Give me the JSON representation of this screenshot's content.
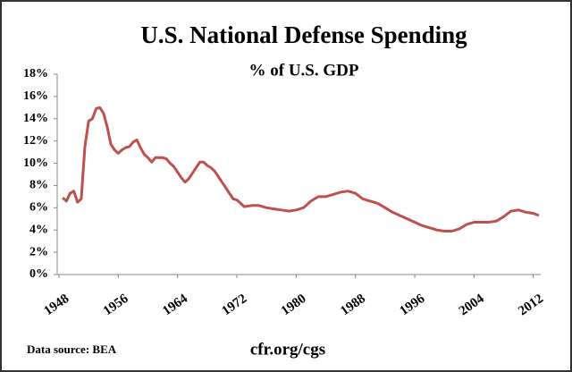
{
  "chart_data": {
    "type": "line",
    "title": "U.S. National Defense Spending",
    "subtitle": "% of U.S. GDP",
    "source": "Data source: BEA",
    "footer": "cfr.org/cgs",
    "x": [
      1948.5,
      1949,
      1949.5,
      1950,
      1950.5,
      1951,
      1951.5,
      1952,
      1952.5,
      1953,
      1953.5,
      1954,
      1954.5,
      1955,
      1955.5,
      1956,
      1956.5,
      1957,
      1957.5,
      1958,
      1958.5,
      1959,
      1959.5,
      1960,
      1960.5,
      1961,
      1961.5,
      1962,
      1962.5,
      1963,
      1963.5,
      1964,
      1964.5,
      1965,
      1965.5,
      1966,
      1966.5,
      1967,
      1967.5,
      1968,
      1968.5,
      1969,
      1969.5,
      1970,
      1970.5,
      1971,
      1971.5,
      1972,
      1972.5,
      1973,
      1974,
      1975,
      1976,
      1977,
      1978,
      1979,
      1980,
      1981,
      1982,
      1983,
      1984,
      1985,
      1986,
      1987,
      1988,
      1989,
      1990,
      1991,
      1992,
      1993,
      1994,
      1995,
      1996,
      1997,
      1998,
      1999,
      2000,
      2001,
      2002,
      2003,
      2004,
      2005,
      2006,
      2007,
      2008,
      2009,
      2010,
      2011,
      2012,
      2012.75
    ],
    "series": [
      {
        "color": "#c0504d",
        "values": [
          6.9,
          6.6,
          7.3,
          7.5,
          6.5,
          6.8,
          11.5,
          13.8,
          14.0,
          14.9,
          15.0,
          14.5,
          13.3,
          11.7,
          11.2,
          10.9,
          11.2,
          11.4,
          11.5,
          11.9,
          12.1,
          11.4,
          10.8,
          10.5,
          10.1,
          10.5,
          10.5,
          10.5,
          10.4,
          10.0,
          9.7,
          9.2,
          8.7,
          8.3,
          8.6,
          9.1,
          9.6,
          10.1,
          10.1,
          9.8,
          9.6,
          9.3,
          8.8,
          8.3,
          7.8,
          7.3,
          6.8,
          6.7,
          6.4,
          6.1,
          6.2,
          6.2,
          6.0,
          5.9,
          5.8,
          5.7,
          5.8,
          6.0,
          6.6,
          7.0,
          7.0,
          7.2,
          7.4,
          7.5,
          7.3,
          6.8,
          6.6,
          6.4,
          6.0,
          5.6,
          5.3,
          5.0,
          4.7,
          4.4,
          4.2,
          4.0,
          3.9,
          3.9,
          4.1,
          4.5,
          4.7,
          4.7,
          4.7,
          4.8,
          5.2,
          5.7,
          5.8,
          5.6,
          5.5,
          5.3
        ]
      }
    ],
    "xlim": [
      1948,
      2013
    ],
    "xticks": [
      1948,
      1956,
      1964,
      1972,
      1980,
      1988,
      1996,
      2004,
      2012
    ],
    "ylim": [
      0,
      18
    ],
    "yticks": [
      {
        "value": 0,
        "label": "0%"
      },
      {
        "value": 2,
        "label": "2%"
      },
      {
        "value": 4,
        "label": "4%"
      },
      {
        "value": 6,
        "label": "6%"
      },
      {
        "value": 8,
        "label": "8%"
      },
      {
        "value": 10,
        "label": "10%"
      },
      {
        "value": 12,
        "label": "12%"
      },
      {
        "value": 14,
        "label": "14%"
      },
      {
        "value": 16,
        "label": "16%"
      },
      {
        "value": 18,
        "label": "18%"
      }
    ]
  }
}
